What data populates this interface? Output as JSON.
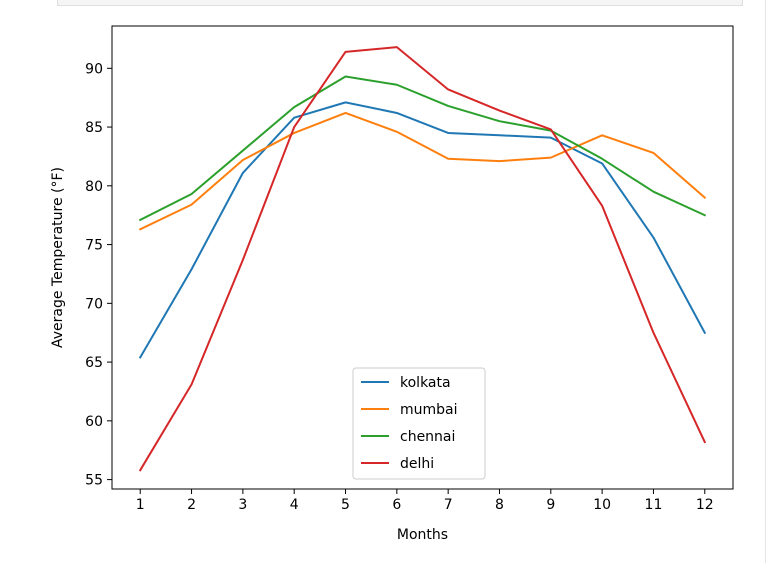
{
  "chart_data": {
    "type": "line",
    "x": [
      1,
      2,
      3,
      4,
      5,
      6,
      7,
      8,
      9,
      10,
      11,
      12
    ],
    "xlabel": "Months",
    "ylabel": "Average Temperature (°F)",
    "xlim": [
      0.45,
      12.55
    ],
    "ylim": [
      54.2,
      93.6
    ],
    "xticks": [
      "1",
      "2",
      "3",
      "4",
      "5",
      "6",
      "7",
      "8",
      "9",
      "10",
      "11",
      "12"
    ],
    "yticks": [
      "55",
      "60",
      "65",
      "70",
      "75",
      "80",
      "85",
      "90"
    ],
    "grid": false,
    "legend_position": "lower center",
    "series": [
      {
        "name": "kolkata",
        "color": "#1f77b4",
        "values": [
          65.4,
          72.9,
          81.1,
          85.8,
          87.1,
          86.2,
          84.5,
          84.3,
          84.1,
          81.9,
          75.6,
          67.5
        ]
      },
      {
        "name": "mumbai",
        "color": "#ff7f0e",
        "values": [
          76.3,
          78.4,
          82.2,
          84.5,
          86.2,
          84.6,
          82.3,
          82.1,
          82.4,
          84.3,
          82.8,
          79.0
        ]
      },
      {
        "name": "chennai",
        "color": "#2ca02c",
        "values": [
          77.1,
          79.3,
          83.0,
          86.7,
          89.3,
          88.6,
          86.8,
          85.5,
          84.7,
          82.3,
          79.5,
          77.5
        ]
      },
      {
        "name": "delhi",
        "color": "#d62728",
        "values": [
          55.8,
          63.1,
          73.7,
          85.0,
          91.4,
          91.8,
          88.2,
          86.4,
          84.8,
          78.3,
          67.5,
          58.2
        ]
      }
    ]
  }
}
